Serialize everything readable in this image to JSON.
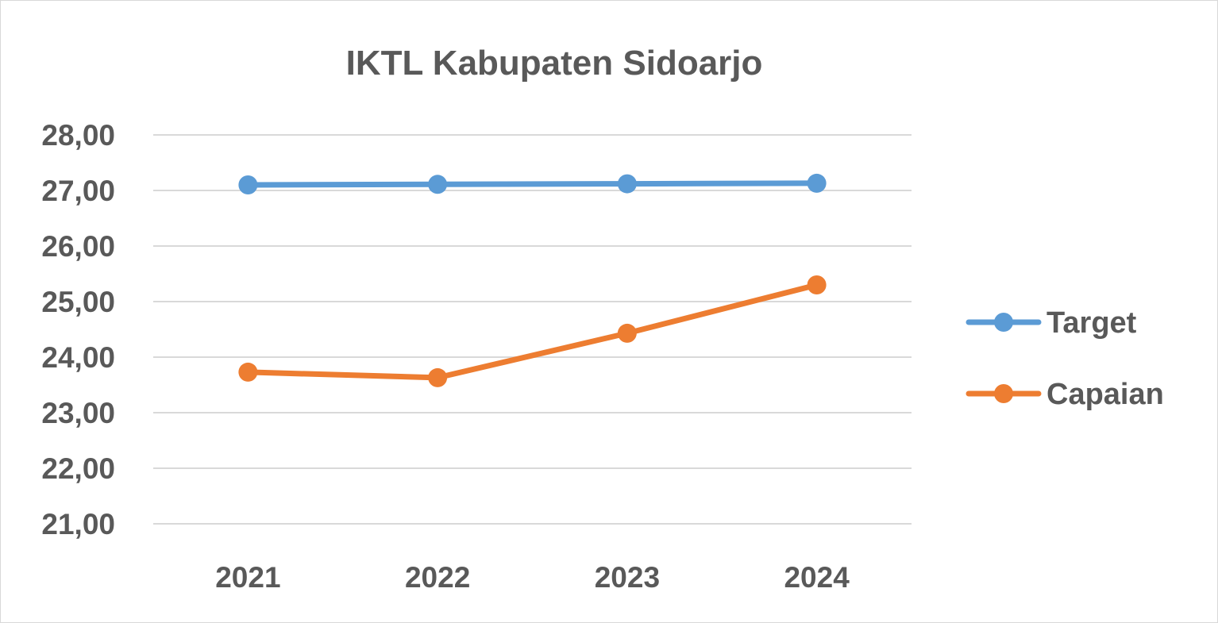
{
  "chart_data": {
    "type": "line",
    "title": "IKTL Kabupaten Sidoarjo",
    "xlabel": "",
    "ylabel": "",
    "categories": [
      "2021",
      "2022",
      "2023",
      "2024"
    ],
    "ylim": [
      21,
      28
    ],
    "yticks": [
      21,
      22,
      23,
      24,
      25,
      26,
      27,
      28
    ],
    "ytick_labels": [
      "21,00",
      "22,00",
      "23,00",
      "24,00",
      "25,00",
      "26,00",
      "27,00",
      "28,00"
    ],
    "grid": true,
    "legend_position": "right",
    "series": [
      {
        "name": "Target",
        "color": "#5b9bd5",
        "values": [
          27.1,
          27.11,
          27.12,
          27.13
        ]
      },
      {
        "name": "Capaian",
        "color": "#ed7d31",
        "values": [
          23.73,
          23.63,
          24.43,
          25.3
        ]
      }
    ]
  }
}
